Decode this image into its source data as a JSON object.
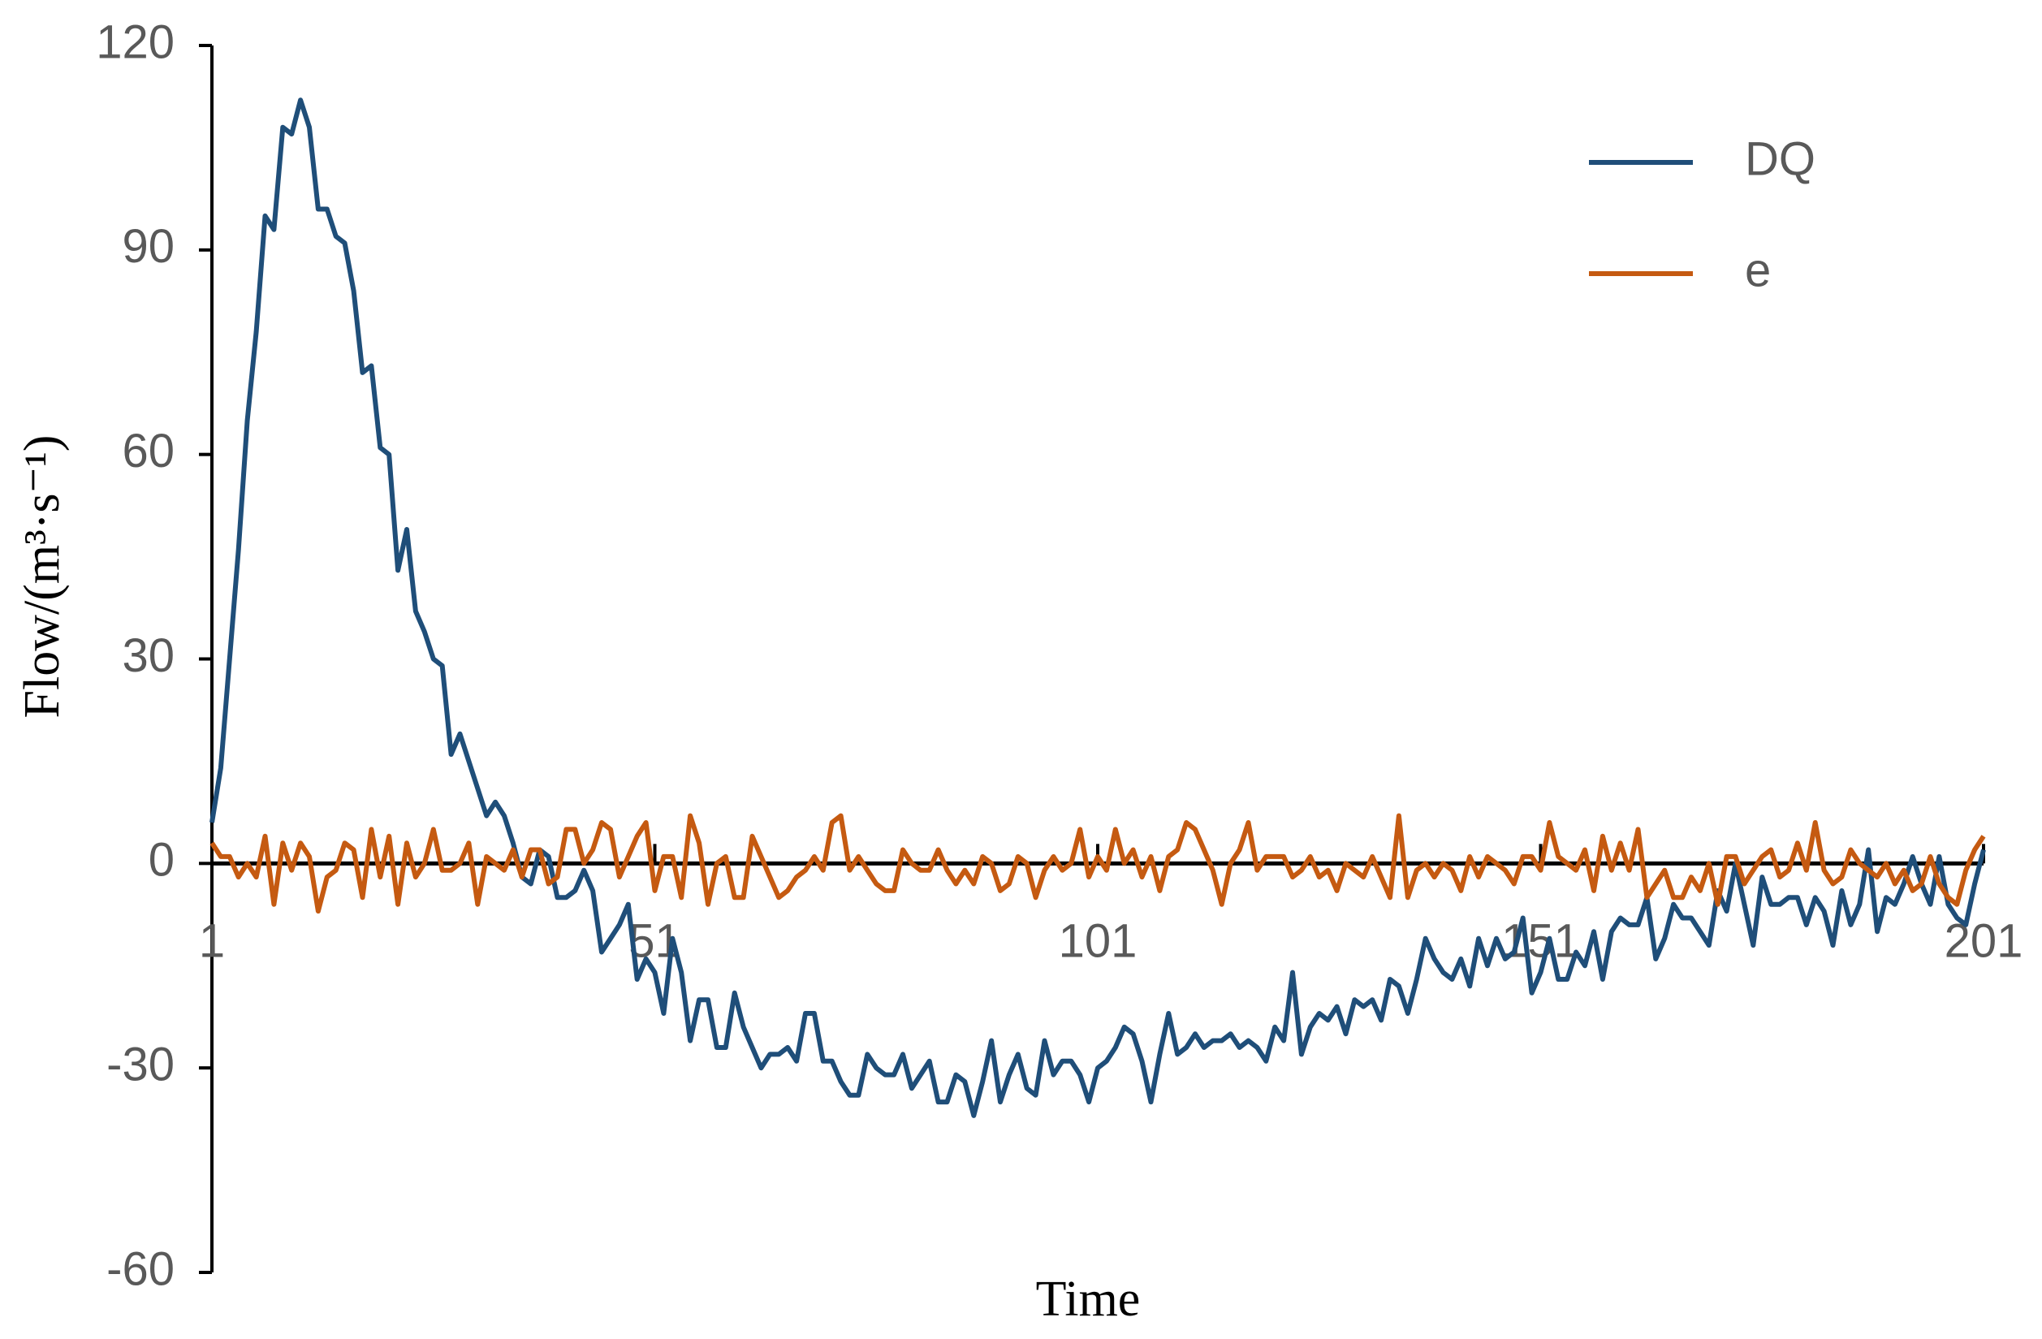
{
  "chart_data": {
    "type": "line",
    "x_label": "Time",
    "y_label": "Flow/(m³·s⁻¹)",
    "xlim": [
      1,
      201
    ],
    "xticks": [
      1,
      51,
      101,
      151,
      201
    ],
    "ylim": [
      -60,
      120
    ],
    "yticks": [
      -60,
      -30,
      0,
      30,
      60,
      90,
      120
    ],
    "legend": "upper right",
    "x": [
      1,
      2,
      3,
      4,
      5,
      6,
      7,
      8,
      9,
      10,
      11,
      12,
      13,
      14,
      15,
      16,
      17,
      18,
      19,
      20,
      21,
      22,
      23,
      24,
      25,
      26,
      27,
      28,
      29,
      30,
      31,
      32,
      33,
      34,
      35,
      36,
      37,
      38,
      39,
      40,
      41,
      42,
      43,
      44,
      45,
      46,
      47,
      48,
      49,
      50,
      51,
      52,
      53,
      54,
      55,
      56,
      57,
      58,
      59,
      60,
      61,
      62,
      63,
      64,
      65,
      66,
      67,
      68,
      69,
      70,
      71,
      72,
      73,
      74,
      75,
      76,
      77,
      78,
      79,
      80,
      81,
      82,
      83,
      84,
      85,
      86,
      87,
      88,
      89,
      90,
      91,
      92,
      93,
      94,
      95,
      96,
      97,
      98,
      99,
      100,
      101,
      102,
      103,
      104,
      105,
      106,
      107,
      108,
      109,
      110,
      111,
      112,
      113,
      114,
      115,
      116,
      117,
      118,
      119,
      120,
      121,
      122,
      123,
      124,
      125,
      126,
      127,
      128,
      129,
      130,
      131,
      132,
      133,
      134,
      135,
      136,
      137,
      138,
      139,
      140,
      141,
      142,
      143,
      144,
      145,
      146,
      147,
      148,
      149,
      150,
      151,
      152,
      153,
      154,
      155,
      156,
      157,
      158,
      159,
      160,
      161,
      162,
      163,
      164,
      165,
      166,
      167,
      168,
      169,
      170,
      171,
      172,
      173,
      174,
      175,
      176,
      177,
      178,
      179,
      180,
      181,
      182,
      183,
      184,
      185,
      186,
      187,
      188,
      189,
      190,
      191,
      192,
      193,
      194,
      195,
      196,
      197,
      198,
      199,
      200,
      201
    ],
    "series": [
      {
        "name": "DQ",
        "color": "#1f4e79",
        "values": [
          6,
          14,
          30,
          46,
          65,
          78,
          95,
          93,
          108,
          107,
          112,
          108,
          96,
          96,
          92,
          91,
          84,
          72,
          73,
          61,
          60,
          43,
          49,
          37,
          34,
          30,
          29,
          16,
          19,
          15,
          11,
          7,
          9,
          7,
          3,
          -2,
          -3,
          2,
          1,
          -5,
          -5,
          -4,
          -1,
          -4,
          -13,
          -11,
          -9,
          -6,
          -17,
          -14,
          -16,
          -22,
          -11,
          -16,
          -26,
          -20,
          -20,
          -27,
          -27,
          -19,
          -24,
          -27,
          -30,
          -28,
          -28,
          -27,
          -29,
          -22,
          -22,
          -29,
          -29,
          -32,
          -34,
          -34,
          -28,
          -30,
          -31,
          -31,
          -28,
          -33,
          -31,
          -29,
          -35,
          -35,
          -31,
          -32,
          -37,
          -32,
          -26,
          -35,
          -31,
          -28,
          -33,
          -34,
          -26,
          -31,
          -29,
          -29,
          -31,
          -35,
          -30,
          -29,
          -27,
          -24,
          -25,
          -29,
          -35,
          -28,
          -22,
          -28,
          -27,
          -25,
          -27,
          -26,
          -26,
          -25,
          -27,
          -26,
          -27,
          -29,
          -24,
          -26,
          -16,
          -28,
          -24,
          -22,
          -23,
          -21,
          -25,
          -20,
          -21,
          -20,
          -23,
          -17,
          -18,
          -22,
          -17,
          -11,
          -14,
          -16,
          -17,
          -14,
          -18,
          -11,
          -15,
          -11,
          -14,
          -13,
          -8,
          -19,
          -16,
          -11,
          -17,
          -17,
          -13,
          -15,
          -10,
          -17,
          -10,
          -8,
          -9,
          -9,
          -5,
          -14,
          -11,
          -6,
          -8,
          -8,
          -10,
          -12,
          -4,
          -7,
          0,
          -6,
          -12,
          -2,
          -6,
          -6,
          -5,
          -5,
          -9,
          -5,
          -7,
          -12,
          -4,
          -9,
          -6,
          2,
          -10,
          -5,
          -6,
          -3,
          1,
          -3,
          -6,
          1,
          -6,
          -8,
          -9,
          -3,
          2
        ]
      },
      {
        "name": "e",
        "color": "#c55a11",
        "values": [
          3,
          1,
          1,
          -2,
          0,
          -2,
          4,
          -6,
          3,
          -1,
          3,
          1,
          -7,
          -2,
          -1,
          3,
          2,
          -5,
          5,
          -2,
          4,
          -6,
          3,
          -2,
          0,
          5,
          -1,
          -1,
          0,
          3,
          -6,
          1,
          0,
          -1,
          2,
          -2,
          2,
          2,
          -3,
          -2,
          5,
          5,
          0,
          2,
          6,
          5,
          -2,
          1,
          4,
          6,
          -4,
          1,
          1,
          -5,
          7,
          3,
          -6,
          0,
          1,
          -5,
          -5,
          4,
          1,
          -2,
          -5,
          -4,
          -2,
          -1,
          1,
          -1,
          6,
          7,
          -1,
          1,
          -1,
          -3,
          -4,
          -4,
          2,
          0,
          -1,
          -1,
          2,
          -1,
          -3,
          -1,
          -3,
          1,
          0,
          -4,
          -3,
          1,
          0,
          -5,
          -1,
          1,
          -1,
          0,
          5,
          -2,
          1,
          -1,
          5,
          0,
          2,
          -2,
          1,
          -4,
          1,
          2,
          6,
          5,
          2,
          -1,
          -6,
          0,
          2,
          6,
          -1,
          1,
          1,
          1,
          -2,
          -1,
          1,
          -2,
          -1,
          -4,
          0,
          -1,
          -2,
          1,
          -2,
          -5,
          7,
          -5,
          -1,
          0,
          -2,
          0,
          -1,
          -4,
          1,
          -2,
          1,
          0,
          -1,
          -3,
          1,
          1,
          -1,
          6,
          1,
          0,
          -1,
          2,
          -4,
          4,
          -1,
          3,
          -1,
          5,
          -5,
          -3,
          -1,
          -5,
          -5,
          -2,
          -4,
          0,
          -6,
          1,
          1,
          -3,
          -1,
          1,
          2,
          -2,
          -1,
          3,
          -1,
          6,
          -1,
          -3,
          -2,
          2,
          0,
          -1,
          -2,
          0,
          -3,
          -1,
          -4,
          -3,
          1,
          -3,
          -5,
          -6,
          -1,
          2,
          4
        ]
      }
    ]
  }
}
